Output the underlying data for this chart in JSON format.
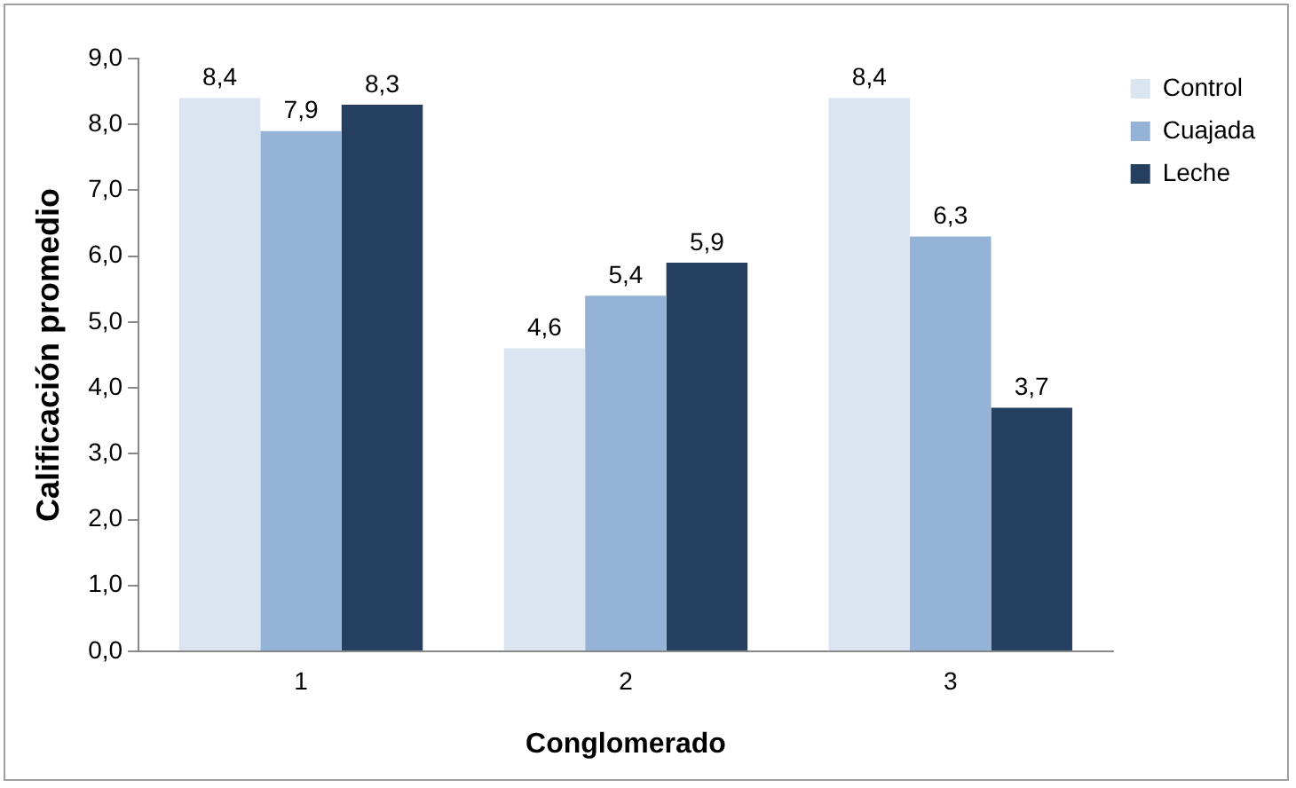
{
  "chart_data": {
    "type": "bar",
    "xlabel": "Conglomerado",
    "ylabel": "Calificación promedio",
    "categories": [
      "1",
      "2",
      "3"
    ],
    "series": [
      {
        "name": "Control",
        "color": "#dbe5f1",
        "values": [
          8.4,
          4.6,
          8.4
        ],
        "value_labels": [
          "8,4",
          "4,6",
          "8,4"
        ]
      },
      {
        "name": "Cuajada",
        "color": "#95b3d7",
        "values": [
          7.9,
          5.4,
          6.3
        ],
        "value_labels": [
          "7,9",
          "5,4",
          "6,3"
        ]
      },
      {
        "name": "Leche",
        "color": "#243f60",
        "values": [
          8.3,
          5.9,
          3.7
        ],
        "value_labels": [
          "8,3",
          "5,9",
          "3,7"
        ]
      }
    ],
    "ylim": [
      0,
      9
    ],
    "yticks": [
      {
        "value": 0,
        "label": "0,0"
      },
      {
        "value": 1,
        "label": "1,0"
      },
      {
        "value": 2,
        "label": "2,0"
      },
      {
        "value": 3,
        "label": "3,0"
      },
      {
        "value": 4,
        "label": "4,0"
      },
      {
        "value": 5,
        "label": "5,0"
      },
      {
        "value": 6,
        "label": "6,0"
      },
      {
        "value": 7,
        "label": "7,0"
      },
      {
        "value": 8,
        "label": "8,0"
      },
      {
        "value": 9,
        "label": "9,0"
      }
    ],
    "grid": false,
    "legend": "top right"
  }
}
